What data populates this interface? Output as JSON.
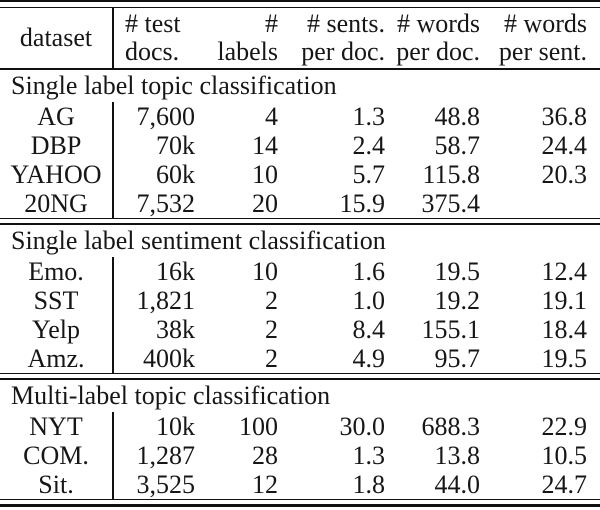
{
  "colors": {
    "rule": "#111111",
    "text": "#161616",
    "background": "#ffffff"
  },
  "table": {
    "header": {
      "dataset": "dataset",
      "test_docs": "# test\ndocs.",
      "labels": "# labels",
      "sents_per_doc": "# sents.\nper doc.",
      "words_per_doc": "# words\nper doc.",
      "words_per_sent": "# words\nper sent."
    },
    "sections": [
      {
        "title": "Single label topic classification",
        "rows": [
          {
            "dataset": "AG",
            "test_docs": "7,600",
            "labels": "4",
            "sents_per_doc": "1.3",
            "words_per_doc": "48.8",
            "words_per_sent": "36.8"
          },
          {
            "dataset": "DBP",
            "test_docs": "70k",
            "labels": "14",
            "sents_per_doc": "2.4",
            "words_per_doc": "58.7",
            "words_per_sent": "24.4"
          },
          {
            "dataset": "YAHOO",
            "test_docs": "60k",
            "labels": "10",
            "sents_per_doc": "5.7",
            "words_per_doc": "115.8",
            "words_per_sent": "20.3"
          },
          {
            "dataset": "20NG",
            "test_docs": "7,532",
            "labels": "20",
            "sents_per_doc": "15.9",
            "words_per_doc": "375.4",
            "words_per_sent": ""
          }
        ]
      },
      {
        "title": "Single label sentiment classification",
        "rows": [
          {
            "dataset": "Emo.",
            "test_docs": "16k",
            "labels": "10",
            "sents_per_doc": "1.6",
            "words_per_doc": "19.5",
            "words_per_sent": "12.4"
          },
          {
            "dataset": "SST",
            "test_docs": "1,821",
            "labels": "2",
            "sents_per_doc": "1.0",
            "words_per_doc": "19.2",
            "words_per_sent": "19.1"
          },
          {
            "dataset": "Yelp",
            "test_docs": "38k",
            "labels": "2",
            "sents_per_doc": "8.4",
            "words_per_doc": "155.1",
            "words_per_sent": "18.4"
          },
          {
            "dataset": "Amz.",
            "test_docs": "400k",
            "labels": "2",
            "sents_per_doc": "4.9",
            "words_per_doc": "95.7",
            "words_per_sent": "19.5"
          }
        ]
      },
      {
        "title": "Multi-label topic classification",
        "rows": [
          {
            "dataset": "NYT",
            "test_docs": "10k",
            "labels": "100",
            "sents_per_doc": "30.0",
            "words_per_doc": "688.3",
            "words_per_sent": "22.9"
          },
          {
            "dataset": "COM.",
            "test_docs": "1,287",
            "labels": "28",
            "sents_per_doc": "1.3",
            "words_per_doc": "13.8",
            "words_per_sent": "10.5"
          },
          {
            "dataset": "Sit.",
            "test_docs": "3,525",
            "labels": "12",
            "sents_per_doc": "1.8",
            "words_per_doc": "44.0",
            "words_per_sent": "24.7"
          }
        ]
      }
    ]
  }
}
